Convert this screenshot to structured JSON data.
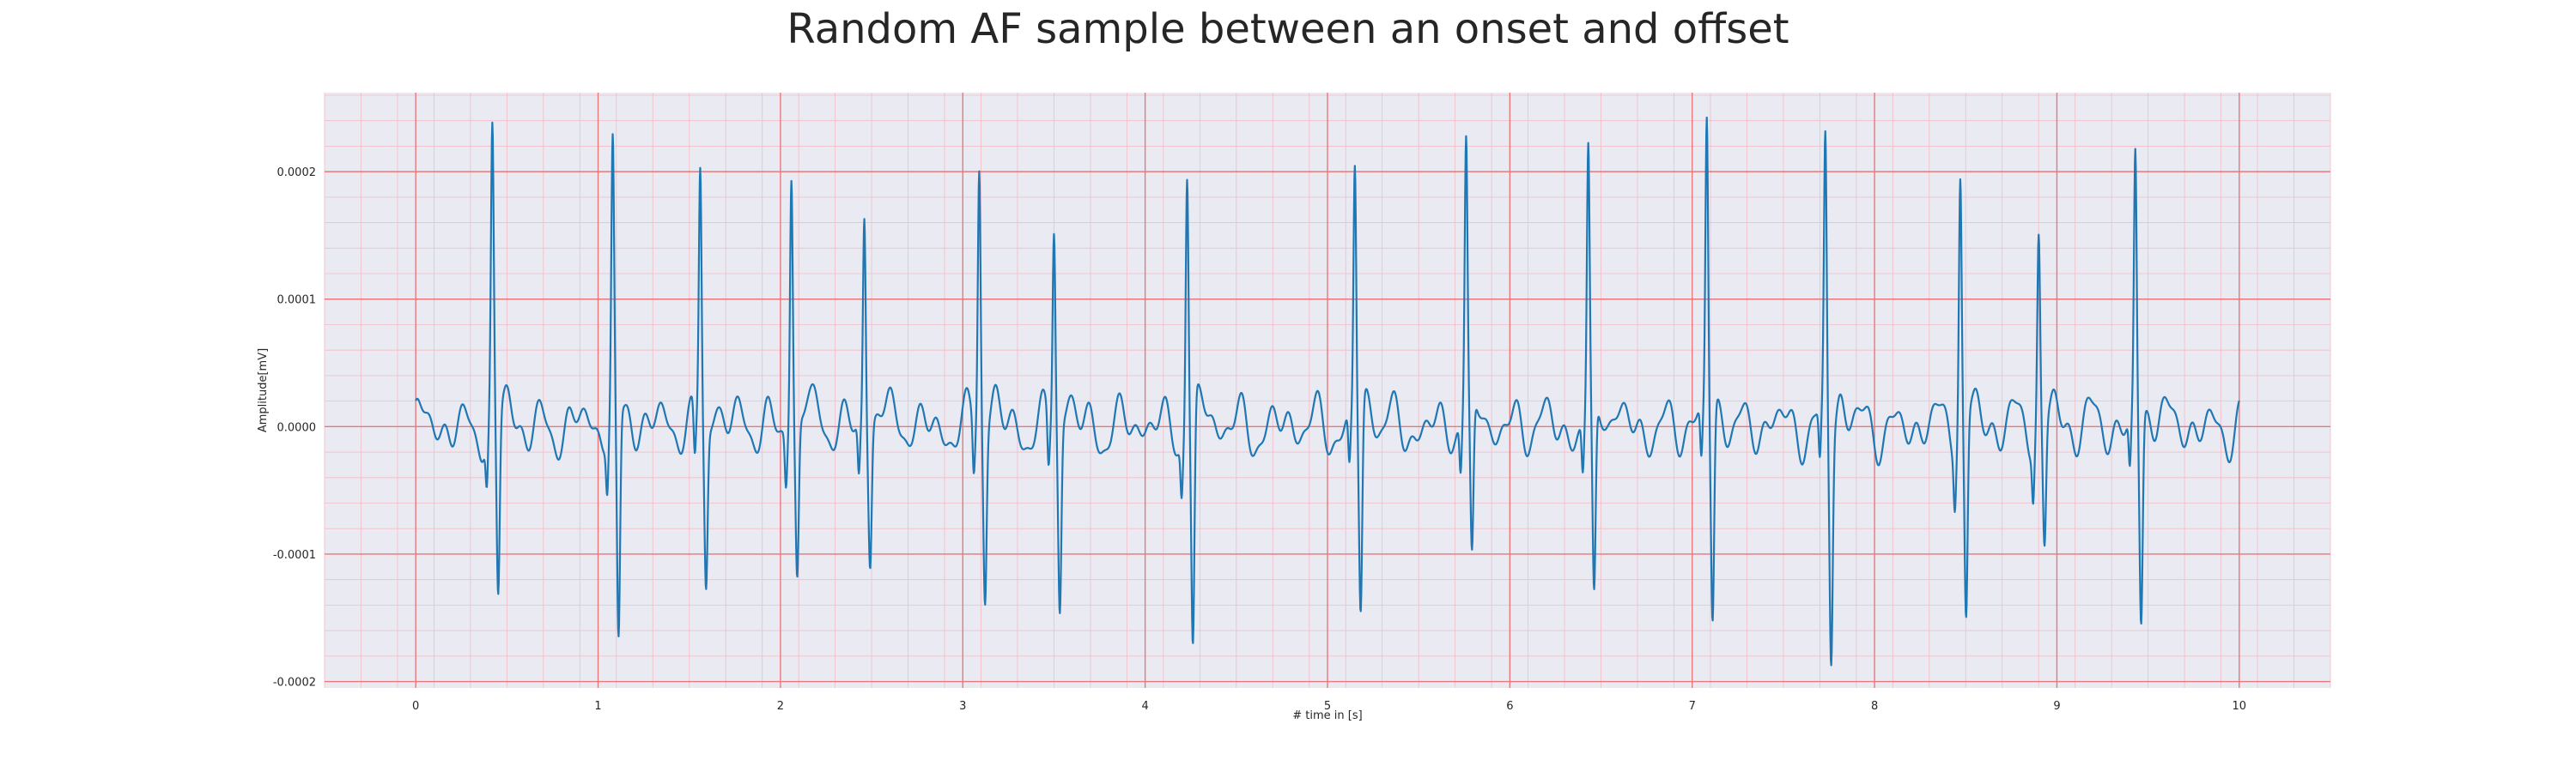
{
  "chart_data": {
    "type": "line",
    "title": "Random AF sample between an onset and offset",
    "xlabel": "# time in [s]",
    "ylabel": "Amplitude[mV]",
    "xlim": [
      -0.5,
      10.5
    ],
    "ylim": [
      -0.000205,
      0.000262
    ],
    "xticks": [
      0,
      1,
      2,
      3,
      4,
      5,
      6,
      7,
      8,
      9,
      10
    ],
    "xtick_labels": [
      "0",
      "1",
      "2",
      "3",
      "4",
      "5",
      "6",
      "7",
      "8",
      "9",
      "10"
    ],
    "yticks": [
      -0.0002,
      -0.0001,
      0.0,
      0.0001,
      0.0002
    ],
    "ytick_labels": [
      "-0.0002",
      "-0.0001",
      "0.0000",
      "0.0001",
      "0.0002"
    ],
    "grid": true,
    "minor_grid": true,
    "colors": {
      "background": "#eaeaf2",
      "major_grid": "#e8787a",
      "minor_grid": "#f2bcc6",
      "line": "#1f77b4"
    },
    "series": [
      {
        "beats": [
          {
            "t": 0.42,
            "peak": 0.00022,
            "trough": -0.000145
          },
          {
            "t": 1.08,
            "peak": 0.000213,
            "trough": -0.000185
          },
          {
            "t": 1.56,
            "peak": 0.000205,
            "trough": -0.000123
          },
          {
            "t": 2.06,
            "peak": 0.000206,
            "trough": -0.00012
          },
          {
            "t": 2.46,
            "peak": 0.000172,
            "trough": -0.000104
          },
          {
            "t": 3.09,
            "peak": 0.000208,
            "trough": -0.000133
          },
          {
            "t": 3.5,
            "peak": 0.000158,
            "trough": -0.000146
          },
          {
            "t": 4.23,
            "peak": 0.000205,
            "trough": -0.000189
          },
          {
            "t": 5.15,
            "peak": 0.000205,
            "trough": -0.000157
          },
          {
            "t": 5.76,
            "peak": 0.000212,
            "trough": -0.000124
          },
          {
            "t": 6.43,
            "peak": 0.000211,
            "trough": -0.000151
          },
          {
            "t": 7.08,
            "peak": 0.000238,
            "trough": -0.000162
          },
          {
            "t": 7.73,
            "peak": 0.000224,
            "trough": -0.000174
          },
          {
            "t": 8.47,
            "peak": 0.000202,
            "trough": -0.00016
          },
          {
            "t": 8.9,
            "peak": 0.000148,
            "trough": -9.85e-05
          },
          {
            "t": 9.43,
            "peak": 0.000212,
            "trough": -0.00016
          }
        ],
        "baseline_amplitude": 3e-05,
        "t_start": 0.0,
        "t_end": 10.0
      }
    ]
  }
}
